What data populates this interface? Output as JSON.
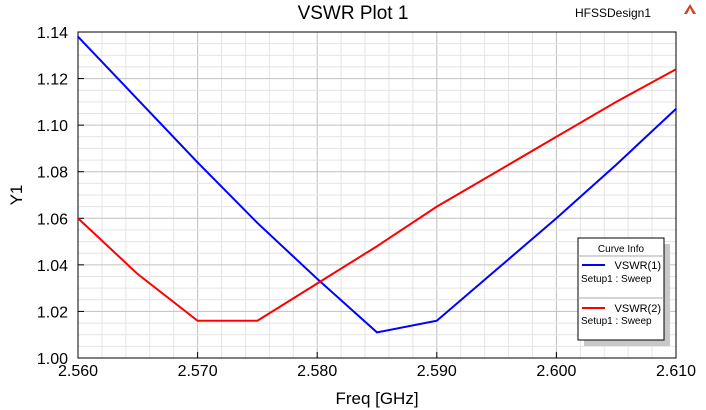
{
  "header": {
    "design_name": "HFSSDesign1"
  },
  "chart_data": {
    "type": "line",
    "title": "VSWR Plot 1",
    "xlabel": "Freq [GHz]",
    "ylabel": "Y1",
    "xlim": [
      2.56,
      2.61
    ],
    "ylim": [
      1.0,
      1.14
    ],
    "xticks": [
      "2.560",
      "2.570",
      "2.580",
      "2.590",
      "2.600",
      "2.610"
    ],
    "yticks": [
      "1.00",
      "1.02",
      "1.04",
      "1.06",
      "1.08",
      "1.10",
      "1.12",
      "1.14"
    ],
    "grid": true,
    "x": [
      2.56,
      2.565,
      2.57,
      2.575,
      2.58,
      2.585,
      2.59,
      2.595,
      2.6,
      2.605,
      2.61
    ],
    "series": [
      {
        "name": "VSWR(1)",
        "subtitle": "Setup1 : Sweep",
        "color": "#0000ff",
        "values": [
          1.138,
          1.111,
          1.084,
          1.058,
          1.034,
          1.011,
          1.016,
          1.038,
          1.06,
          1.083,
          1.107
        ]
      },
      {
        "name": "VSWR(2)",
        "subtitle": "Setup1 : Sweep",
        "color": "#ff0000",
        "values": [
          1.06,
          1.036,
          1.016,
          1.016,
          1.032,
          1.048,
          1.065,
          1.08,
          1.095,
          1.11,
          1.124
        ]
      }
    ],
    "legend": {
      "title": "Curve Info",
      "placement": "bottom-right"
    }
  }
}
